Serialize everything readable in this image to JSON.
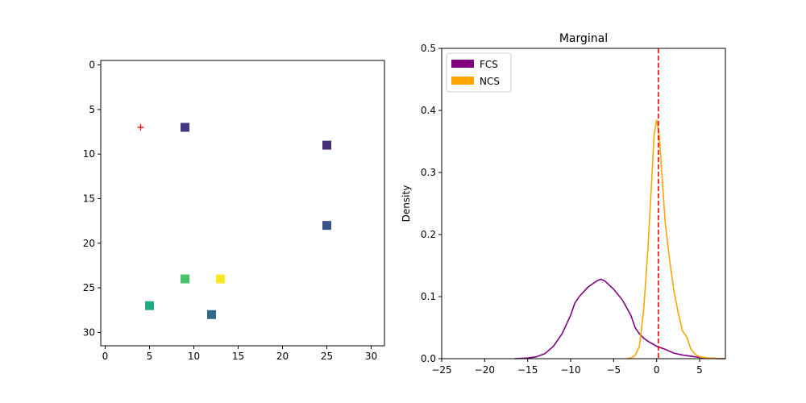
{
  "chart_data": [
    {
      "type": "scatter",
      "title": "",
      "xlabel": "",
      "ylabel": "",
      "xlim": [
        -0.5,
        31.5
      ],
      "ylim": [
        31.5,
        -0.5
      ],
      "y_inverted": true,
      "xticks": [
        0,
        5,
        10,
        15,
        20,
        25,
        30
      ],
      "yticks": [
        0,
        5,
        10,
        15,
        20,
        25,
        30
      ],
      "grid": false,
      "points": [
        {
          "x": 9,
          "y": 7,
          "color": "#453781"
        },
        {
          "x": 25,
          "y": 9,
          "color": "#472d7b"
        },
        {
          "x": 25,
          "y": 18,
          "color": "#3b528b"
        },
        {
          "x": 9,
          "y": 24,
          "color": "#4ac16d"
        },
        {
          "x": 13,
          "y": 24,
          "color": "#fde725"
        },
        {
          "x": 5,
          "y": 27,
          "color": "#22a884"
        },
        {
          "x": 12,
          "y": 28,
          "color": "#31688e"
        }
      ],
      "marker_point": {
        "x": 4,
        "y": 7,
        "marker": "+",
        "color": "#ff0000"
      }
    },
    {
      "type": "line",
      "title": "Marginal",
      "xlabel": "",
      "ylabel": "Density",
      "xlim": [
        -25,
        8
      ],
      "ylim": [
        0,
        0.5
      ],
      "xticks": [
        -25,
        -20,
        -15,
        -10,
        -5,
        0,
        5
      ],
      "yticks": [
        0.0,
        0.1,
        0.2,
        0.3,
        0.4,
        0.5
      ],
      "ytick_labels": [
        "0.0",
        "0.1",
        "0.2",
        "0.3",
        "0.4",
        "0.5"
      ],
      "grid": false,
      "legend_position": "top-left",
      "vline": {
        "x": 0.2,
        "color": "#ff0000",
        "style": "dashed"
      },
      "series": [
        {
          "name": "FCS",
          "color": "#800080",
          "x": [
            -16.5,
            -15,
            -14,
            -13,
            -12,
            -11,
            -10,
            -9.5,
            -9,
            -8,
            -7,
            -6.5,
            -6,
            -5,
            -4,
            -3,
            -2.5,
            -2,
            -1.5,
            -1,
            -0.5,
            0,
            1,
            2,
            3,
            4,
            5,
            6,
            7,
            8
          ],
          "y": [
            0.0,
            0.001,
            0.003,
            0.008,
            0.02,
            0.04,
            0.07,
            0.09,
            0.1,
            0.115,
            0.125,
            0.128,
            0.125,
            0.112,
            0.095,
            0.07,
            0.05,
            0.04,
            0.033,
            0.028,
            0.024,
            0.02,
            0.015,
            0.009,
            0.006,
            0.004,
            0.002,
            0.001,
            0.0003,
            0.0
          ]
        },
        {
          "name": "NCS",
          "color": "#ffa500",
          "x": [
            -3.5,
            -3,
            -2.5,
            -2,
            -1.5,
            -1,
            -0.6,
            -0.3,
            0,
            0.3,
            0.6,
            1,
            1.5,
            2,
            2.5,
            3,
            3.5,
            4,
            4.5,
            5,
            6,
            7,
            8
          ],
          "y": [
            0.0,
            0.001,
            0.005,
            0.02,
            0.08,
            0.18,
            0.28,
            0.36,
            0.385,
            0.36,
            0.3,
            0.22,
            0.16,
            0.11,
            0.075,
            0.045,
            0.035,
            0.015,
            0.007,
            0.003,
            0.001,
            0.0003,
            0.0
          ]
        }
      ]
    }
  ]
}
